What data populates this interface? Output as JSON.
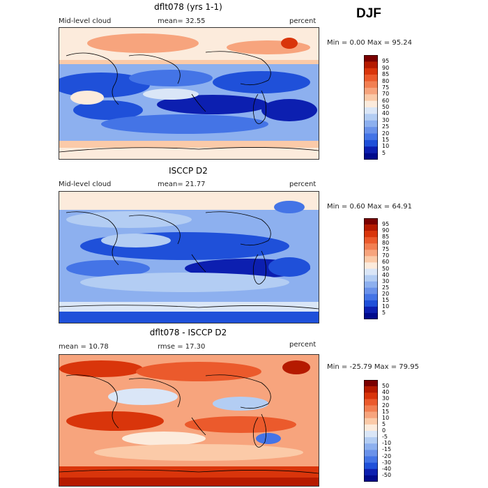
{
  "season": "DJF",
  "panels": [
    {
      "title": "dflt078 (yrs 1-1)",
      "left_label": "Mid-level cloud",
      "mean_label": "mean=  32.55",
      "units": "percent",
      "minmax": "Min =   0.00 Max =  95.24",
      "colorbar": {
        "labels": [
          "95",
          "90",
          "85",
          "80",
          "75",
          "70",
          "60",
          "50",
          "40",
          "30",
          "25",
          "20",
          "15",
          "10",
          "5"
        ],
        "colors": [
          "#7a0000",
          "#b51a00",
          "#d9350b",
          "#eb5a2c",
          "#f27f52",
          "#f7a47d",
          "#fbcaa8",
          "#fcebdc",
          "#dae6f7",
          "#b3cdf3",
          "#8db0ef",
          "#6a92ea",
          "#4474e6",
          "#1f50d9",
          "#0c1fb0",
          "#000a8c"
        ]
      }
    },
    {
      "title": "ISCCP D2",
      "left_label": "Mid-level cloud",
      "mean_label": "mean=  21.77",
      "units": "percent",
      "minmax": "Min =   0.60 Max =  64.91",
      "colorbar": {
        "labels": [
          "95",
          "90",
          "85",
          "80",
          "75",
          "70",
          "60",
          "50",
          "40",
          "30",
          "25",
          "20",
          "15",
          "10",
          "5"
        ],
        "colors": [
          "#7a0000",
          "#b51a00",
          "#d9350b",
          "#eb5a2c",
          "#f27f52",
          "#f7a47d",
          "#fbcaa8",
          "#fcebdc",
          "#dae6f7",
          "#b3cdf3",
          "#8db0ef",
          "#6a92ea",
          "#4474e6",
          "#1f50d9",
          "#0c1fb0",
          "#000a8c"
        ]
      }
    },
    {
      "title": "dflt078 - ISCCP D2",
      "left_label": "mean =   10.78",
      "mean_label": "rmse =  17.30",
      "units": "percent",
      "minmax": "Min = -25.79 Max =  79.95",
      "colorbar": {
        "labels": [
          "50",
          "40",
          "30",
          "20",
          "15",
          "10",
          "5",
          "0",
          "-5",
          "-10",
          "-15",
          "-20",
          "-30",
          "-40",
          "-50"
        ],
        "colors": [
          "#7a0000",
          "#b51a00",
          "#d9350b",
          "#eb5a2c",
          "#f27f52",
          "#f7a47d",
          "#fbcaa8",
          "#fcebdc",
          "#dae6f7",
          "#b3cdf3",
          "#8db0ef",
          "#6a92ea",
          "#4474e6",
          "#1f50d9",
          "#0c1fb0",
          "#000a8c"
        ]
      }
    }
  ]
}
